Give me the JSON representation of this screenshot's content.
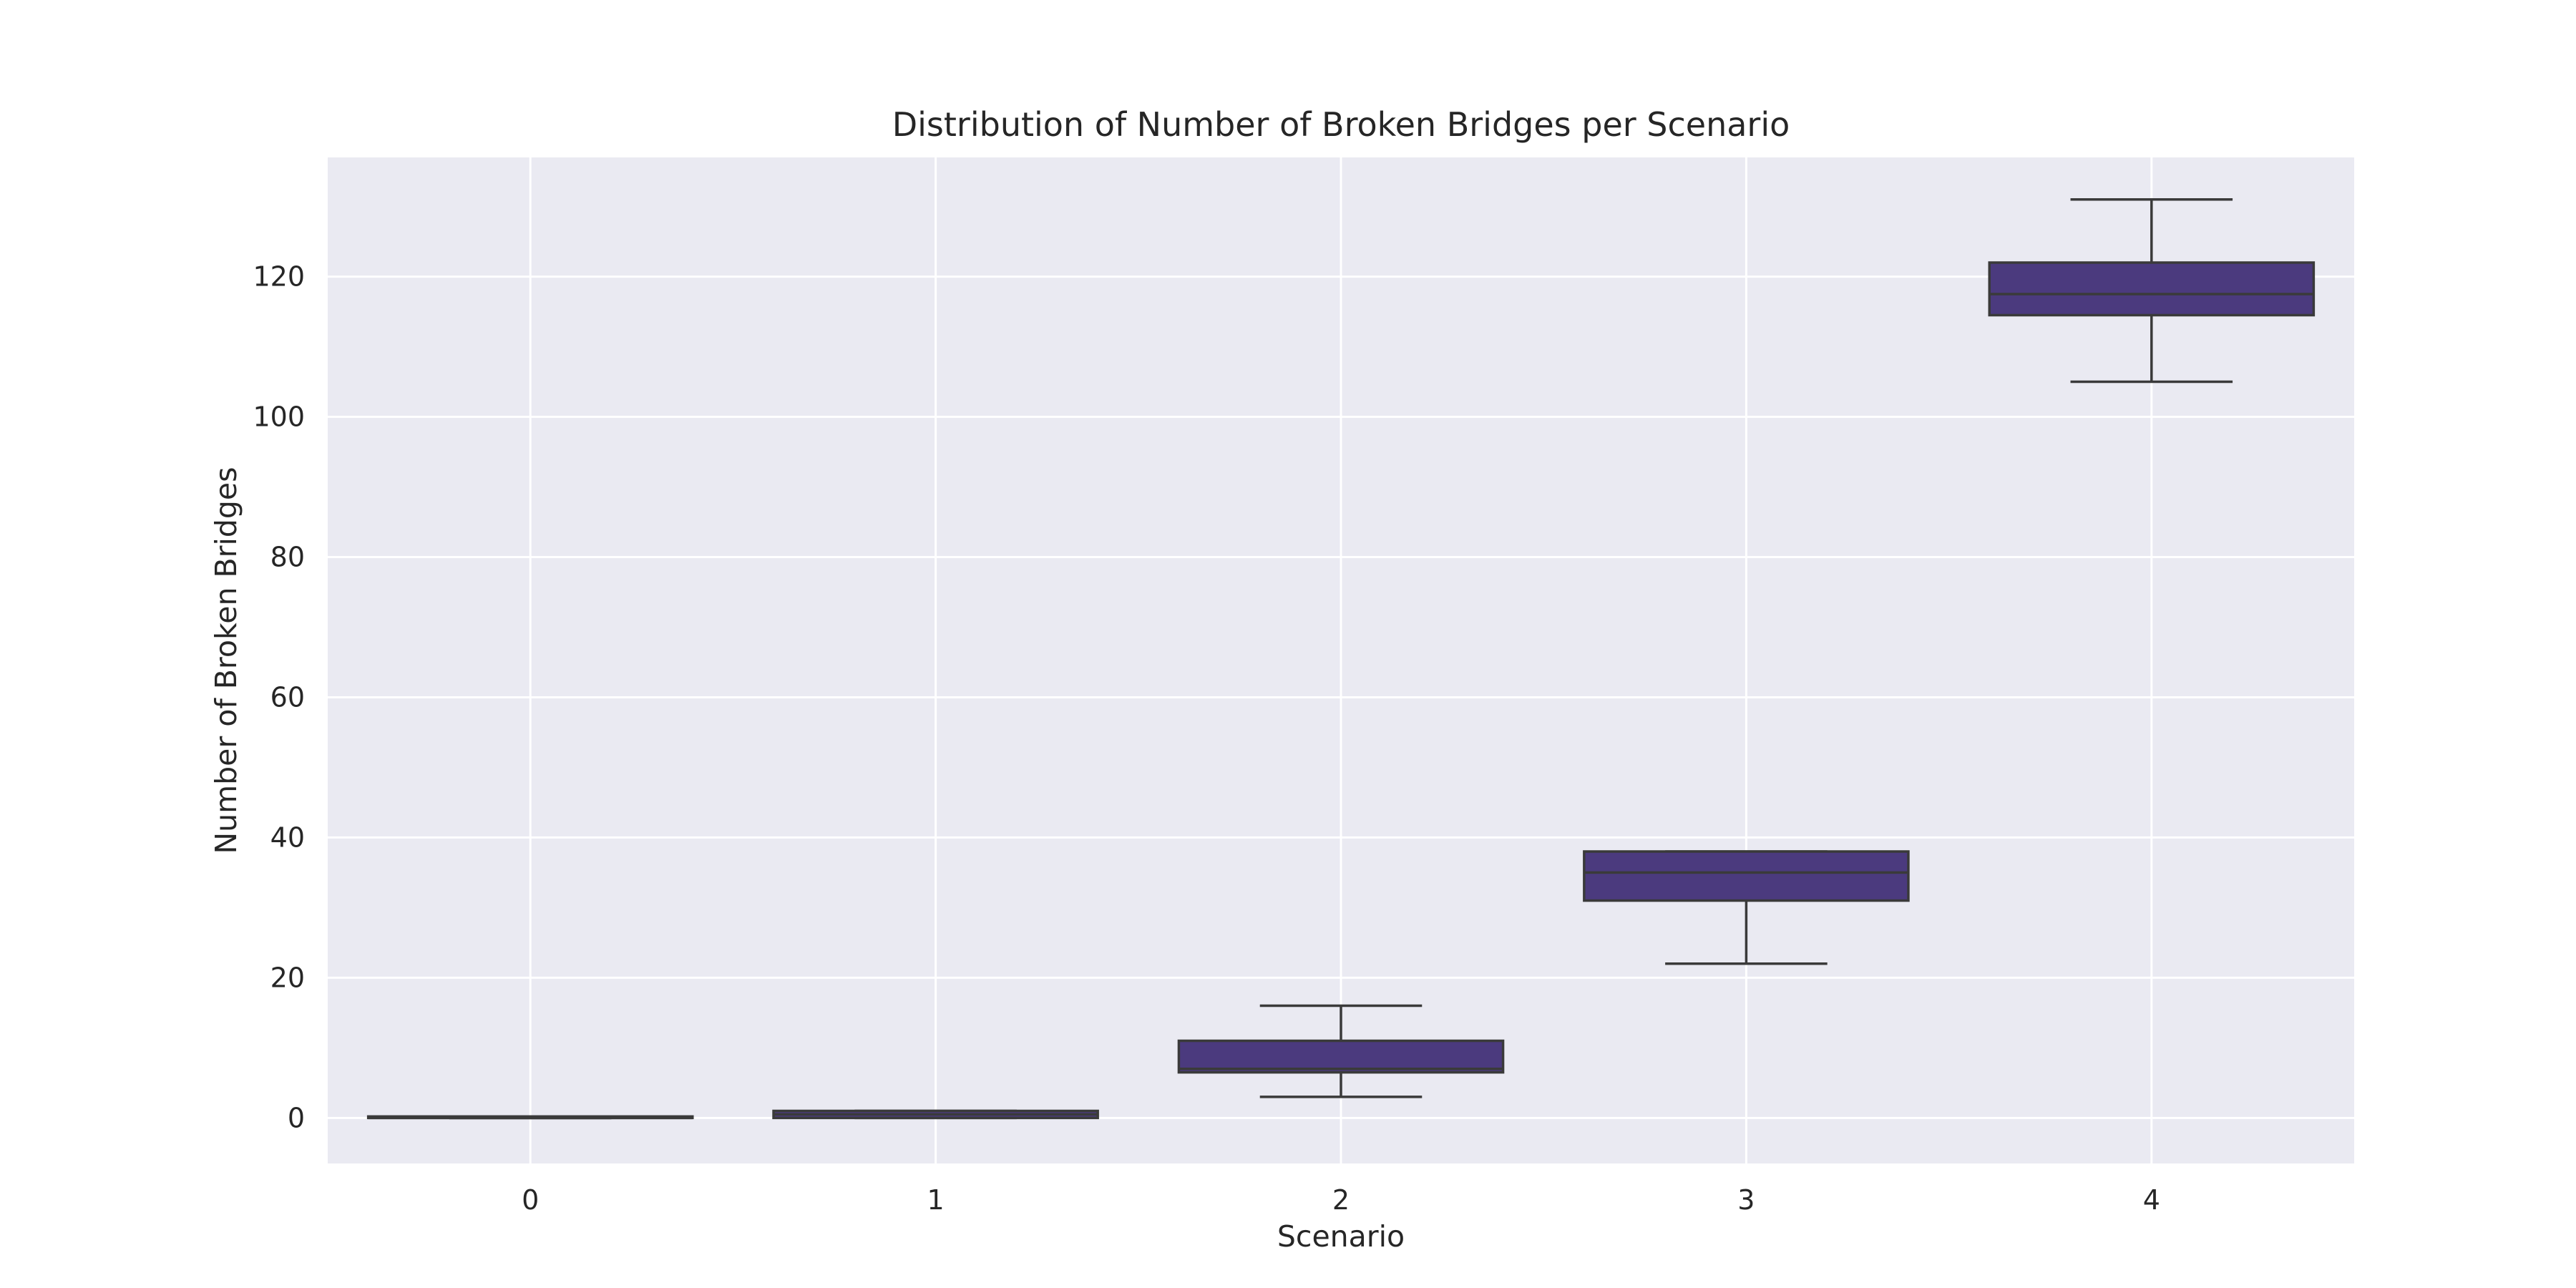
{
  "chart_data": {
    "type": "box",
    "title": "Distribution of Number of Broken Bridges per Scenario",
    "xlabel": "Scenario",
    "ylabel": "Number of Broken Bridges",
    "categories": [
      "0",
      "1",
      "2",
      "3",
      "4"
    ],
    "ylim": [
      -6.5,
      137
    ],
    "yticks": [
      0,
      20,
      40,
      60,
      80,
      100,
      120
    ],
    "grid": true,
    "legend": "none",
    "colors": {
      "background": "#eaeaf2",
      "grid": "#ffffff",
      "box_fill": "#4b3a7e",
      "edge": "#3a3a3a",
      "text": "#262626"
    },
    "boxes": [
      {
        "category": "0",
        "whisker_low": 0,
        "q1": 0,
        "median": 0,
        "q3": 0,
        "whisker_high": 0
      },
      {
        "category": "1",
        "whisker_low": 0,
        "q1": 0,
        "median": 0.5,
        "q3": 1,
        "whisker_high": 1
      },
      {
        "category": "2",
        "whisker_low": 3,
        "q1": 6.5,
        "median": 7,
        "q3": 11,
        "whisker_high": 16
      },
      {
        "category": "3",
        "whisker_low": 22,
        "q1": 31,
        "median": 35,
        "q3": 38,
        "whisker_high": 38
      },
      {
        "category": "4",
        "whisker_low": 105,
        "q1": 114.5,
        "median": 117.5,
        "q3": 122,
        "whisker_high": 131
      }
    ]
  }
}
